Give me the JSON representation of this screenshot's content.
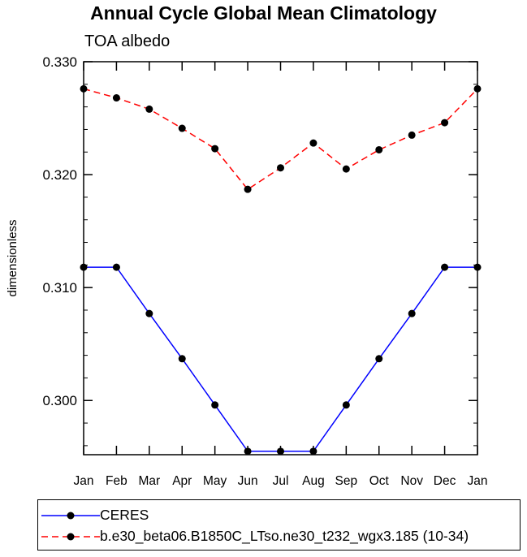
{
  "chart_data": {
    "type": "line",
    "title": "Annual Cycle Global Mean Climatology",
    "subtitle": "TOA albedo",
    "xlabel": "",
    "ylabel": "dimensionless",
    "categories": [
      "Jan",
      "Feb",
      "Mar",
      "Apr",
      "May",
      "Jun",
      "Jul",
      "Aug",
      "Sep",
      "Oct",
      "Nov",
      "Dec",
      "Jan"
    ],
    "ylim": [
      0.2952,
      0.33
    ],
    "yticks": [
      0.3,
      0.31,
      0.32,
      0.33
    ],
    "ytick_labels": [
      "0.300",
      "0.310",
      "0.320",
      "0.330"
    ],
    "series": [
      {
        "name": "CERES",
        "color": "#0000ff",
        "dash": "solid",
        "marker": "circle",
        "values": [
          0.3118,
          0.3118,
          0.3077,
          0.3037,
          0.2996,
          0.2955,
          0.2955,
          0.2955,
          0.2996,
          0.3037,
          0.3077,
          0.3118,
          0.3118
        ]
      },
      {
        "name": "b.e30_beta06.B1850C_LTso.ne30_t232_wgx3.185 (10-34)",
        "color": "#ff0000",
        "dash": "dashed",
        "marker": "circle",
        "values": [
          0.3276,
          0.3268,
          0.3258,
          0.3241,
          0.3223,
          0.3187,
          0.3206,
          0.3228,
          0.3205,
          0.3222,
          0.3235,
          0.3246,
          0.3276
        ]
      }
    ],
    "legend_position": "bottom"
  }
}
